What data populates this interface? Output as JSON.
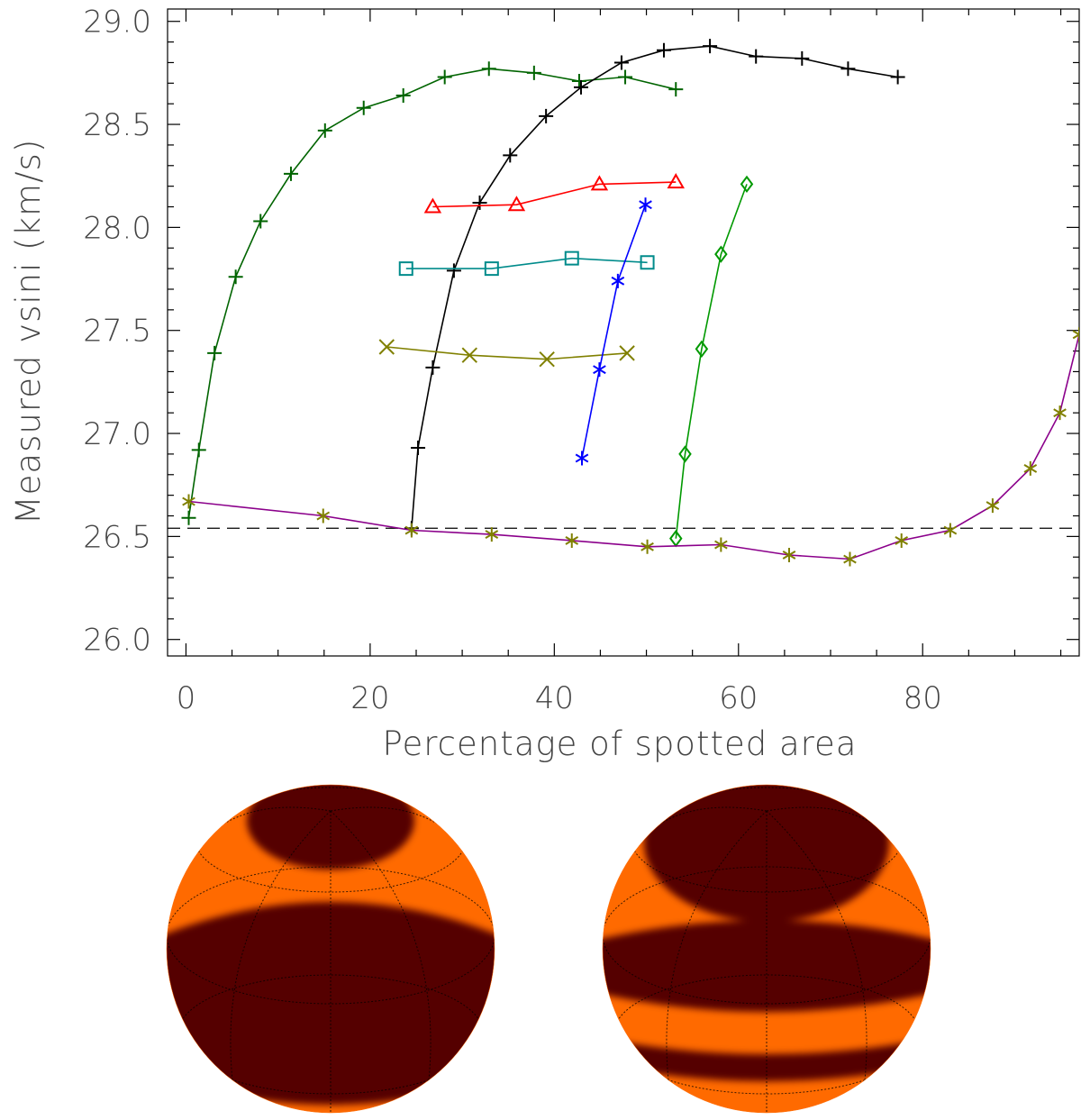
{
  "chart_data": {
    "type": "line",
    "xlabel": "Percentage of spotted area",
    "ylabel": "Measured vsini (km/s)",
    "xlim": [
      -2,
      97
    ],
    "ylim": [
      25.92,
      29.06
    ],
    "xticks": [
      0,
      20,
      40,
      60,
      80
    ],
    "yticks": [
      26.0,
      26.5,
      27.0,
      27.5,
      28.0,
      28.5,
      29.0
    ],
    "xtick_labels": [
      "0",
      "20",
      "40",
      "60",
      "80"
    ],
    "ytick_labels": [
      "26.0",
      "26.5",
      "27.0",
      "27.5",
      "28.0",
      "28.5",
      "29.0"
    ],
    "reference_line": {
      "y": 26.54,
      "style": "dashed",
      "color": "#000000"
    },
    "grid": false,
    "series": [
      {
        "color": "#006400",
        "marker": "plus",
        "x": [
          0.3,
          1.4,
          3.1,
          5.4,
          8.1,
          11.4,
          15.1,
          19.3,
          23.6,
          28.1,
          32.9,
          37.8,
          42.7,
          47.7,
          53.2
        ],
        "y": [
          26.59,
          26.92,
          27.39,
          27.76,
          28.03,
          28.26,
          28.47,
          28.58,
          28.64,
          28.73,
          28.77,
          28.75,
          28.71,
          28.73,
          28.67
        ]
      },
      {
        "color": "#000000",
        "marker": "plus",
        "x": [
          24.5,
          25.2,
          26.8,
          29.1,
          31.9,
          35.2,
          39.1,
          42.9,
          47.3,
          51.9,
          56.9,
          61.9,
          66.9,
          71.9,
          77.3
        ],
        "y": [
          26.54,
          26.93,
          27.32,
          27.79,
          28.12,
          28.35,
          28.54,
          28.68,
          28.8,
          28.86,
          28.88,
          28.83,
          28.82,
          28.77,
          28.73
        ]
      },
      {
        "color": "#ff0000",
        "marker": "triangle",
        "x": [
          26.8,
          35.9,
          44.9,
          53.2
        ],
        "y": [
          28.1,
          28.11,
          28.21,
          28.22
        ]
      },
      {
        "color": "#008b8b",
        "marker": "square",
        "x": [
          23.9,
          33.2,
          41.9,
          50.1
        ],
        "y": [
          27.8,
          27.8,
          27.85,
          27.83
        ]
      },
      {
        "color": "#808000",
        "marker": "x",
        "x": [
          21.8,
          30.8,
          39.2,
          47.9
        ],
        "y": [
          27.42,
          27.38,
          27.36,
          27.39
        ]
      },
      {
        "color": "#0000ff",
        "marker": "asterisk",
        "x": [
          43.0,
          44.9,
          46.9,
          49.9
        ],
        "y": [
          26.88,
          27.31,
          27.74,
          28.11
        ]
      },
      {
        "color": "#009900",
        "marker": "diamond",
        "x": [
          53.2,
          54.2,
          56.0,
          58.1,
          60.9
        ],
        "y": [
          26.49,
          26.9,
          27.41,
          27.87,
          28.21
        ]
      },
      {
        "color": "#8b008b",
        "marker": "asterisk",
        "marker_color": "#808000",
        "x": [
          0.3,
          14.9,
          24.5,
          33.2,
          41.9,
          50.1,
          58.1,
          65.5,
          72.1,
          77.7,
          83.0,
          87.6,
          91.7,
          94.9,
          97.0
        ],
        "y": [
          26.67,
          26.6,
          26.53,
          26.51,
          26.48,
          26.45,
          26.46,
          26.41,
          26.39,
          26.48,
          26.53,
          26.65,
          26.83,
          27.1,
          27.48
        ]
      }
    ]
  },
  "spheres": {
    "left": {
      "base_color": "#ff6a00",
      "spot_color": "#550000"
    },
    "right": {
      "base_color": "#ff6a00",
      "spot_color": "#550000"
    }
  }
}
